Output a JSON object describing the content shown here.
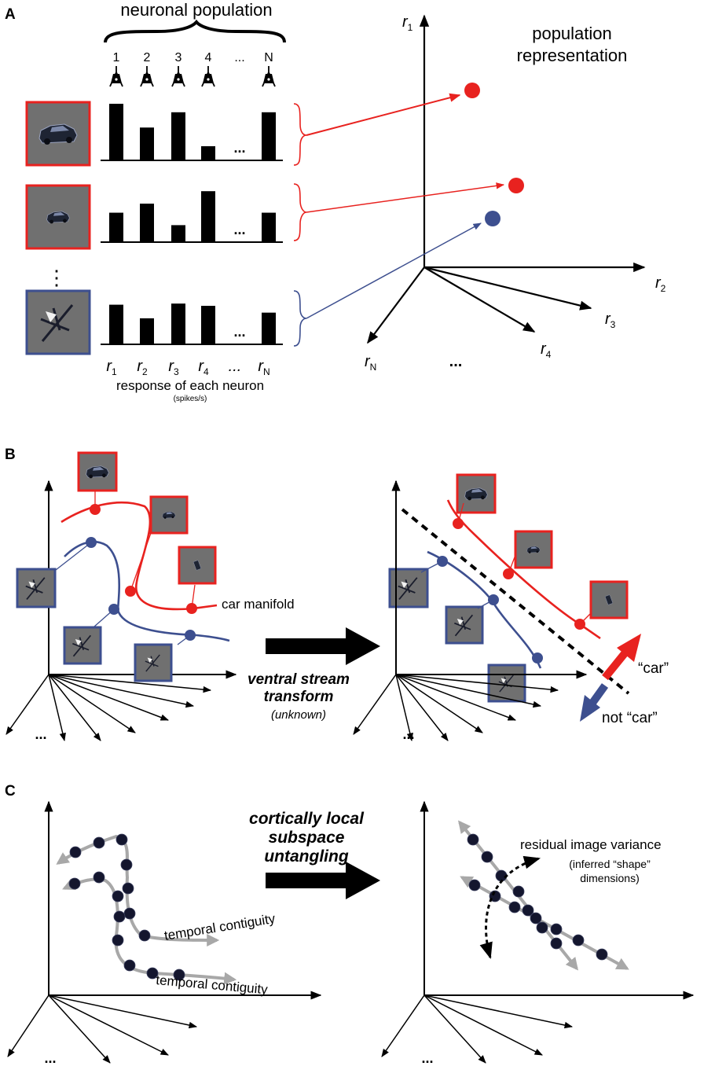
{
  "colors": {
    "car": "#e8221f",
    "notcar": "#3d4f8f",
    "dots": "#14162e",
    "gray_path": "#a8a8a8",
    "thumb_bg": "#707070"
  },
  "panelA": {
    "label": "A",
    "population_title": "neuronal population",
    "neuron_numbers": [
      "1",
      "2",
      "3",
      "4",
      "...",
      "N"
    ],
    "bar_rows": [
      {
        "image": "car-icon",
        "category": "car",
        "responses": [
          1.0,
          0.58,
          0.85,
          0.25,
          0.85
        ]
      },
      {
        "image": "car-small-icon",
        "category": "car",
        "responses": [
          0.52,
          0.68,
          0.3,
          0.9,
          0.52
        ]
      },
      {
        "image": "plane-icon",
        "category": "not car",
        "responses": [
          0.7,
          0.46,
          0.72,
          0.68,
          0.56
        ]
      }
    ],
    "ellipsis_bars": "...",
    "vertical_ellipsis": "⋮",
    "response_labels": [
      {
        "base": "r",
        "sub": "1"
      },
      {
        "base": "r",
        "sub": "2"
      },
      {
        "base": "r",
        "sub": "3"
      },
      {
        "base": "r",
        "sub": "4"
      },
      {
        "base": "...",
        "sub": ""
      },
      {
        "base": "r",
        "sub": "N"
      }
    ],
    "caption_main": "response of each neuron",
    "caption_sub": "(spikes/s)",
    "rep_title_1": "population",
    "rep_title_2": "representation",
    "axes": [
      {
        "base": "r",
        "sub": "1"
      },
      {
        "base": "r",
        "sub": "2"
      },
      {
        "base": "r",
        "sub": "3"
      },
      {
        "base": "r",
        "sub": "4"
      },
      {
        "base": "r",
        "sub": "N"
      }
    ],
    "axes_ellipsis": "..."
  },
  "panelB": {
    "label": "B",
    "car_manifold": "car manifold",
    "transform_1": "ventral stream",
    "transform_2": "transform",
    "transform_3": "(unknown)",
    "car_label": "“car”",
    "notcar_label": "not “car”",
    "ellipsis": "..."
  },
  "panelC": {
    "label": "C",
    "title_1": "cortically local",
    "title_2": "subspace",
    "title_3": "untangling",
    "temporal_1": "temporal contiguity",
    "temporal_2": "temporal contiguity",
    "residual_1": "residual image variance",
    "residual_2": "(inferred “shape”",
    "residual_3": "dimensions)",
    "ellipsis": "..."
  }
}
